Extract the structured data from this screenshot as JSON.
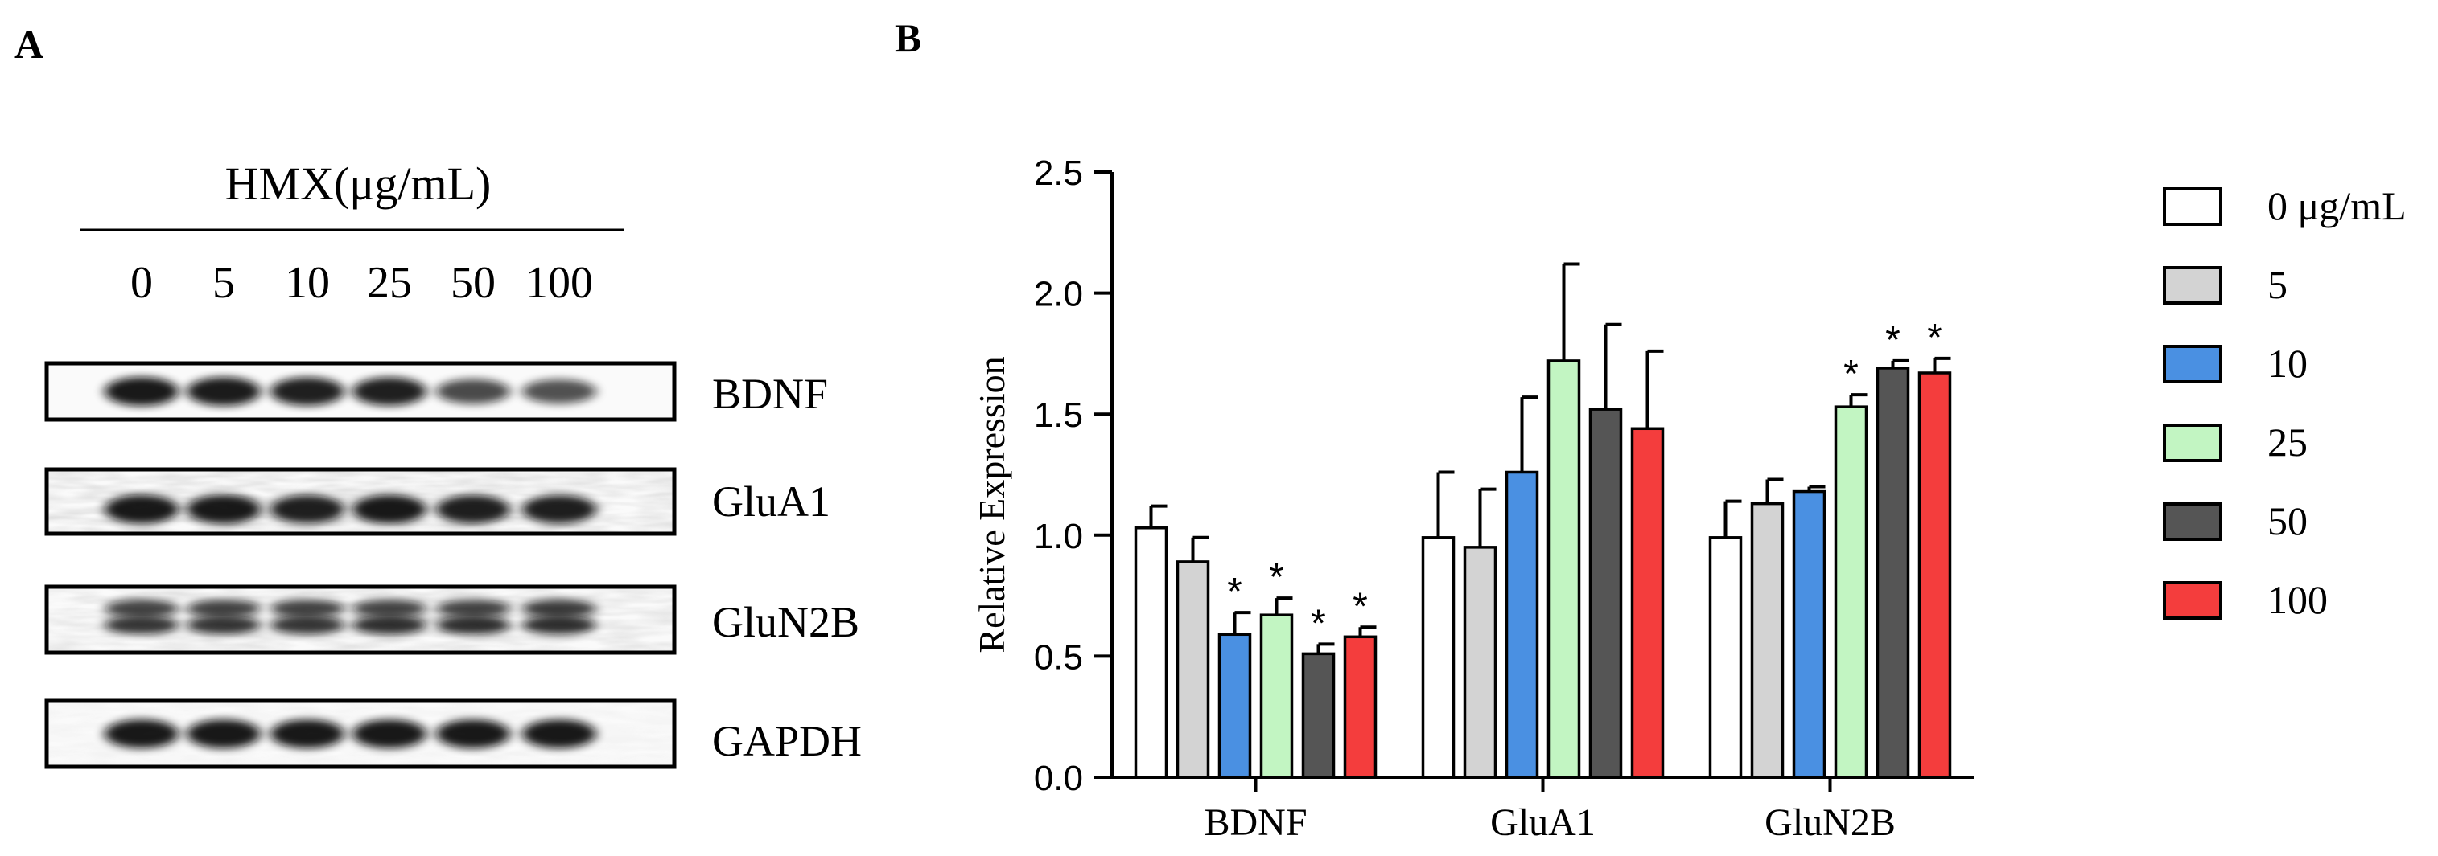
{
  "panel_a": {
    "label": "A",
    "treatment_header": "HMX(μg/mL)",
    "doses": [
      "0",
      "5",
      "10",
      "25",
      "50",
      "100"
    ],
    "blots": [
      {
        "name": "BDNF",
        "bands": [
          {
            "y": 0.5,
            "intensity": [
              1.0,
              0.98,
              0.95,
              0.95,
              0.65,
              0.6
            ]
          }
        ],
        "noise": 0.0
      },
      {
        "name": "GluA1",
        "bands": [
          {
            "y": 0.62,
            "intensity": [
              1.0,
              1.0,
              0.95,
              1.0,
              0.95,
              0.95
            ]
          }
        ],
        "noise": 0.55
      },
      {
        "name": "GluN2B",
        "bands": [
          {
            "y": 0.33,
            "intensity": [
              0.7,
              0.7,
              0.7,
              0.7,
              0.7,
              0.75
            ]
          },
          {
            "y": 0.58,
            "intensity": [
              0.8,
              0.8,
              0.8,
              0.85,
              0.85,
              0.85
            ]
          }
        ],
        "noise": 0.45
      },
      {
        "name": "GAPDH",
        "bands": [
          {
            "y": 0.5,
            "intensity": [
              1.0,
              1.0,
              1.0,
              1.0,
              1.0,
              1.0
            ]
          }
        ],
        "noise": 0.15
      }
    ]
  },
  "panel_b": {
    "label": "B"
  },
  "chart_data": {
    "type": "bar",
    "ylabel": "Relative Expression",
    "xlabel": "",
    "ylim": [
      0.0,
      2.5
    ],
    "yticks": [
      "0.0",
      "0.5",
      "1.0",
      "1.5",
      "2.0",
      "2.5"
    ],
    "categories": [
      "BDNF",
      "GluA1",
      "GluN2B"
    ],
    "series": [
      {
        "name": "0 μg/mL",
        "color": "#ffffff",
        "values": [
          1.03,
          0.99,
          0.99
        ],
        "errors": [
          0.09,
          0.27,
          0.15
        ],
        "significant": [
          false,
          false,
          false
        ]
      },
      {
        "name": "5",
        "color": "#d3d3d3",
        "values": [
          0.89,
          0.95,
          1.13
        ],
        "errors": [
          0.1,
          0.24,
          0.1
        ],
        "significant": [
          false,
          false,
          false
        ]
      },
      {
        "name": "10",
        "color": "#4a90e2",
        "values": [
          0.59,
          1.26,
          1.18
        ],
        "errors": [
          0.09,
          0.31,
          0.02
        ],
        "significant": [
          true,
          false,
          false
        ]
      },
      {
        "name": "25",
        "color": "#c2f5c2",
        "values": [
          0.67,
          1.72,
          1.53
        ],
        "errors": [
          0.07,
          0.4,
          0.05
        ],
        "significant": [
          true,
          false,
          true
        ]
      },
      {
        "name": "50",
        "color": "#555555",
        "values": [
          0.51,
          1.52,
          1.69
        ],
        "errors": [
          0.04,
          0.35,
          0.03
        ],
        "significant": [
          true,
          false,
          true
        ]
      },
      {
        "name": "100",
        "color": "#f43d3d",
        "values": [
          0.58,
          1.44,
          1.67
        ],
        "errors": [
          0.04,
          0.32,
          0.06
        ],
        "significant": [
          true,
          false,
          true
        ]
      }
    ],
    "significance_marker": "*",
    "legend_position": "right"
  }
}
